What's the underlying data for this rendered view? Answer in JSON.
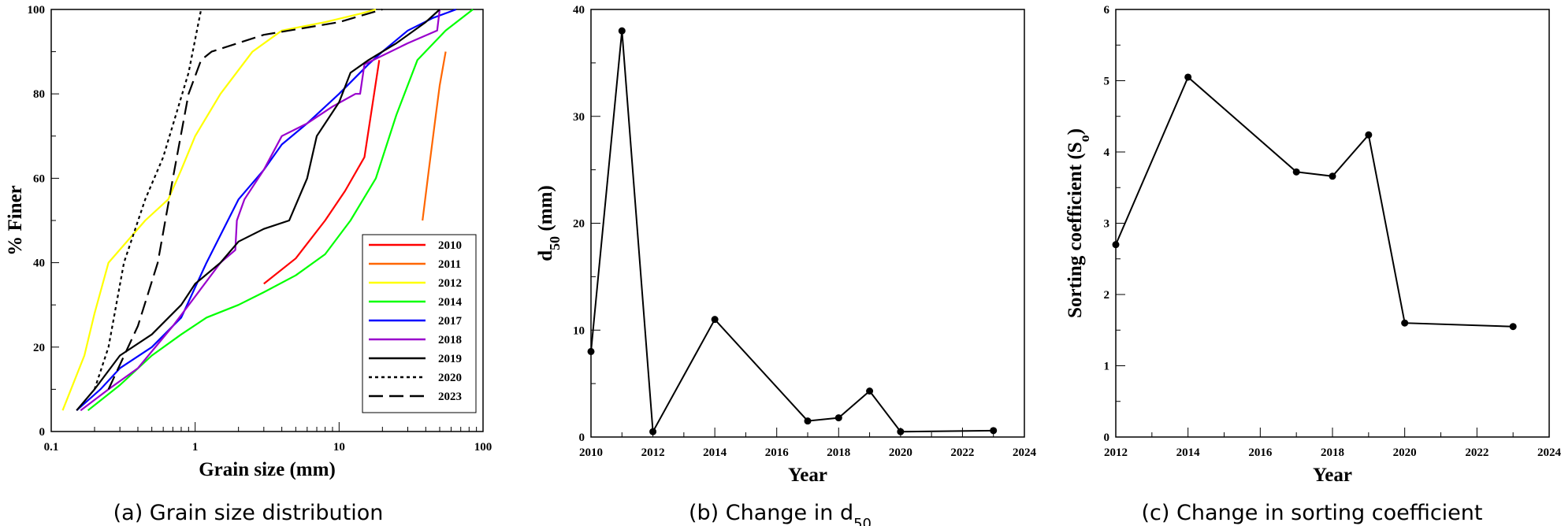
{
  "chart_data": [
    {
      "type": "line",
      "caption": "(a) Grain size distribution",
      "xlabel": "Grain size (mm)",
      "ylabel": "% Finer",
      "xscale": "log",
      "xlim": [
        0.1,
        100
      ],
      "ylim": [
        0,
        100
      ],
      "xticks": [
        "0.1",
        "1",
        "10",
        "100"
      ],
      "yticks": [
        "0",
        "20",
        "40",
        "60",
        "80",
        "100"
      ],
      "legend_position": "lower-right",
      "series": [
        {
          "name": "2010",
          "color": "#ff0000",
          "dash": "solid",
          "points": [
            [
              3,
              35
            ],
            [
              5,
              41
            ],
            [
              8,
              50
            ],
            [
              11,
              57
            ],
            [
              15,
              65
            ],
            [
              19,
              88
            ]
          ]
        },
        {
          "name": "2011",
          "color": "#ff6600",
          "dash": "solid",
          "points": [
            [
              38,
              50
            ],
            [
              42,
              62
            ],
            [
              47,
              75
            ],
            [
              50,
              82
            ],
            [
              55,
              90
            ]
          ]
        },
        {
          "name": "2012",
          "color": "#ffff00",
          "dash": "solid",
          "points": [
            [
              0.12,
              5
            ],
            [
              0.17,
              18
            ],
            [
              0.2,
              28
            ],
            [
              0.25,
              40
            ],
            [
              0.45,
              50
            ],
            [
              0.65,
              55
            ],
            [
              0.8,
              62
            ],
            [
              1.0,
              70
            ],
            [
              1.5,
              80
            ],
            [
              2.5,
              90
            ],
            [
              4,
              95
            ],
            [
              8,
              97
            ],
            [
              14,
              99
            ],
            [
              18,
              100
            ]
          ]
        },
        {
          "name": "2014",
          "color": "#00ff00",
          "dash": "solid",
          "points": [
            [
              0.18,
              5
            ],
            [
              0.3,
              11
            ],
            [
              0.5,
              18
            ],
            [
              0.8,
              23
            ],
            [
              1.2,
              27
            ],
            [
              2,
              30
            ],
            [
              3,
              33
            ],
            [
              5,
              37
            ],
            [
              8,
              42
            ],
            [
              12,
              50
            ],
            [
              18,
              60
            ],
            [
              25,
              75
            ],
            [
              35,
              88
            ],
            [
              55,
              95
            ],
            [
              85,
              100
            ]
          ]
        },
        {
          "name": "2017",
          "color": "#0000ff",
          "dash": "solid",
          "points": [
            [
              0.15,
              5
            ],
            [
              0.22,
              10
            ],
            [
              0.3,
              15
            ],
            [
              0.5,
              20
            ],
            [
              0.8,
              27
            ],
            [
              1.2,
              40
            ],
            [
              2,
              55
            ],
            [
              3,
              62
            ],
            [
              4,
              68
            ],
            [
              6,
              73
            ],
            [
              10,
              80
            ],
            [
              16,
              87
            ],
            [
              20,
              90
            ],
            [
              30,
              95
            ],
            [
              45,
              98
            ],
            [
              65,
              100
            ]
          ]
        },
        {
          "name": "2018",
          "color": "#9900cc",
          "dash": "solid",
          "points": [
            [
              0.16,
              5
            ],
            [
              0.25,
              10
            ],
            [
              0.4,
              15
            ],
            [
              0.7,
              25
            ],
            [
              1.0,
              32
            ],
            [
              1.5,
              40
            ],
            [
              1.9,
              43
            ],
            [
              1.95,
              50
            ],
            [
              2.2,
              55
            ],
            [
              3.0,
              62
            ],
            [
              4,
              70
            ],
            [
              6,
              73
            ],
            [
              9,
              77
            ],
            [
              13,
              80
            ],
            [
              14,
              80
            ],
            [
              15,
              87
            ],
            [
              30,
              92
            ],
            [
              48,
              95
            ],
            [
              50,
              100
            ]
          ]
        },
        {
          "name": "2019",
          "color": "#000000",
          "dash": "solid",
          "points": [
            [
              0.15,
              5
            ],
            [
              0.2,
              10
            ],
            [
              0.3,
              18
            ],
            [
              0.5,
              23
            ],
            [
              0.8,
              30
            ],
            [
              1.0,
              35
            ],
            [
              1.5,
              40
            ],
            [
              2,
              45
            ],
            [
              3,
              48
            ],
            [
              4.5,
              50
            ],
            [
              6,
              60
            ],
            [
              7,
              70
            ],
            [
              10,
              78
            ],
            [
              12,
              85
            ],
            [
              16,
              88
            ],
            [
              20,
              90
            ],
            [
              25,
              92
            ],
            [
              40,
              97
            ],
            [
              50,
              100
            ]
          ]
        },
        {
          "name": "2020",
          "color": "#000000",
          "dash": "dot",
          "points": [
            [
              0.2,
              10
            ],
            [
              0.25,
              20
            ],
            [
              0.32,
              40
            ],
            [
              0.45,
              55
            ],
            [
              0.6,
              65
            ],
            [
              0.9,
              85
            ],
            [
              1.1,
              100
            ]
          ]
        },
        {
          "name": "2023",
          "color": "#000000",
          "dash": "dash",
          "points": [
            [
              0.25,
              10
            ],
            [
              0.4,
              25
            ],
            [
              0.55,
              40
            ],
            [
              0.7,
              60
            ],
            [
              0.9,
              80
            ],
            [
              1.1,
              88
            ],
            [
              1.3,
              90
            ],
            [
              3,
              94
            ],
            [
              10,
              97
            ],
            [
              20,
              100
            ]
          ]
        }
      ]
    },
    {
      "type": "line",
      "caption": "(b) Change in d",
      "caption_sub": "50",
      "xlabel": "Year",
      "ylabel": "d",
      "ylabel_sub": "50",
      "ylabel_unit": " (mm)",
      "xlim": [
        2010,
        2024
      ],
      "ylim": [
        0,
        40
      ],
      "xticks": [
        "2010",
        "2012",
        "2014",
        "2016",
        "2018",
        "2020",
        "2022",
        "2024"
      ],
      "yticks": [
        "0",
        "10",
        "20",
        "30",
        "40"
      ],
      "x": [
        2010,
        2011,
        2012,
        2014,
        2017,
        2018,
        2019,
        2020,
        2023
      ],
      "y": [
        8.0,
        38.0,
        0.5,
        11.0,
        1.5,
        1.8,
        4.3,
        0.5,
        0.6
      ]
    },
    {
      "type": "line",
      "caption": "(c) Change in sorting coefficient",
      "xlabel": "Year",
      "ylabel": "Sorting coefficient (S",
      "ylabel_sub": "o",
      "ylabel_end": ")",
      "xlim": [
        2012,
        2024
      ],
      "ylim": [
        0,
        6
      ],
      "xticks": [
        "2012",
        "2014",
        "2016",
        "2018",
        "2020",
        "2022",
        "2024"
      ],
      "yticks": [
        "0",
        "1",
        "2",
        "3",
        "4",
        "5",
        "6"
      ],
      "x": [
        2012,
        2014,
        2017,
        2018,
        2019,
        2020,
        2023
      ],
      "y": [
        2.7,
        5.05,
        3.72,
        3.66,
        4.24,
        1.6,
        1.55
      ]
    }
  ]
}
